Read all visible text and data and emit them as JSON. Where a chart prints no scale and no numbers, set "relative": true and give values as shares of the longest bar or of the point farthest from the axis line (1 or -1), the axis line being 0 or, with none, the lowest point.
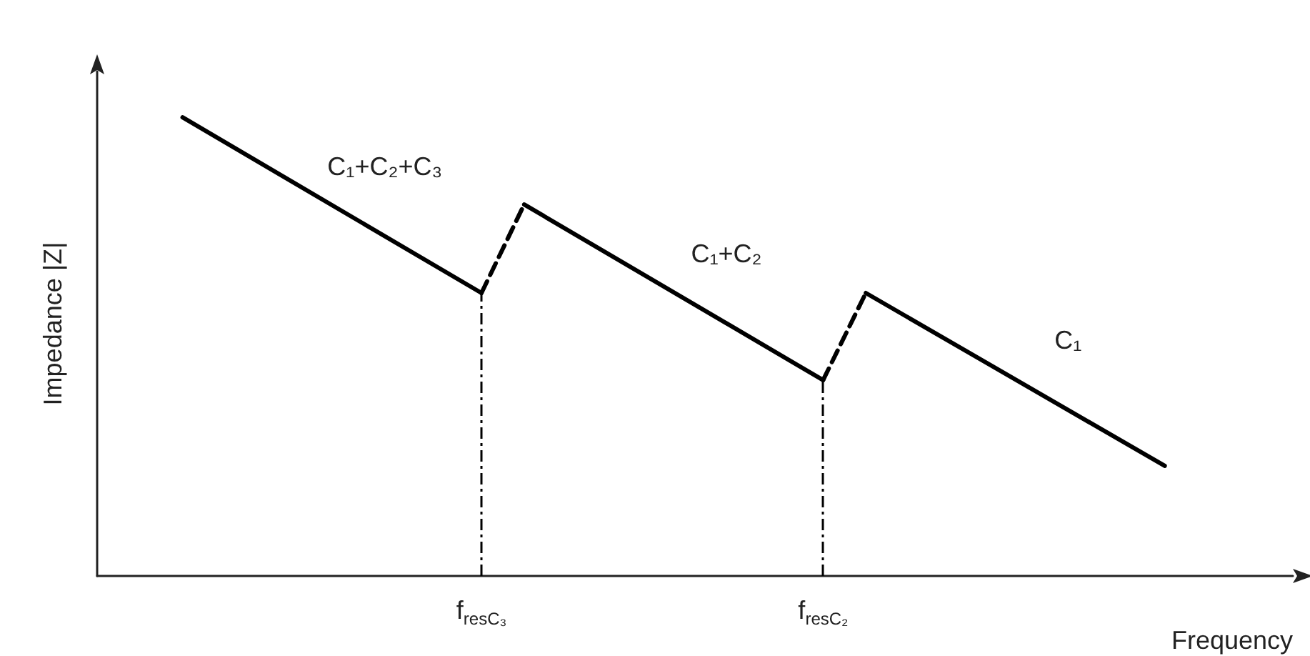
{
  "chart_data": {
    "type": "line",
    "relative": true,
    "xlabel": "Frequency",
    "ylabel": "Impedance |Z|",
    "tick_labels": "x",
    "grid": false,
    "legend": false,
    "marker": "none",
    "categories": [
      null,
      null,
      null,
      null,
      null,
      null,
      null,
      null,
      null,
      "f$_{resC₃}$",
      null,
      null,
      null,
      null,
      null,
      null,
      null,
      "f$_{resC₂}$",
      null,
      null,
      null,
      null,
      null,
      null,
      null,
      null,
      null,
      null,
      null
    ],
    "series": [
      {
        "name": "C₁+C₂+C₃",
        "color": "#000000",
        "line_style": "solid",
        "values": [
          null,
          null,
          1,
          null,
          null,
          null,
          null,
          null,
          null,
          0.617,
          null,
          null,
          null,
          null,
          null,
          null,
          null,
          null,
          null,
          null,
          null,
          null,
          null,
          null,
          null,
          null,
          null,
          null,
          null
        ]
      },
      {
        "color": "#000000",
        "line_style": "dashed",
        "values": [
          null,
          null,
          null,
          null,
          null,
          null,
          null,
          null,
          null,
          0.617,
          0.81,
          null,
          null,
          null,
          null,
          null,
          null,
          null,
          null,
          null,
          null,
          null,
          null,
          null,
          null,
          null,
          null,
          null,
          null
        ]
      },
      {
        "name": "C₁+C₂",
        "color": "#000000",
        "line_style": "solid",
        "values": [
          null,
          null,
          null,
          null,
          null,
          null,
          null,
          null,
          null,
          null,
          0.81,
          null,
          null,
          null,
          null,
          null,
          null,
          0.427,
          null,
          null,
          null,
          null,
          null,
          null,
          null,
          null,
          null,
          null,
          null
        ]
      },
      {
        "color": "#000000",
        "line_style": "dashed",
        "values": [
          null,
          null,
          null,
          null,
          null,
          null,
          null,
          null,
          null,
          null,
          null,
          null,
          null,
          null,
          null,
          null,
          null,
          0.427,
          0.617,
          null,
          null,
          null,
          null,
          null,
          null,
          null,
          null,
          null,
          null
        ]
      },
      {
        "name": "C₁",
        "color": "#000000",
        "line_style": "solid",
        "values": [
          null,
          null,
          null,
          null,
          null,
          null,
          null,
          null,
          null,
          null,
          null,
          null,
          null,
          null,
          null,
          null,
          null,
          null,
          0.617,
          null,
          null,
          null,
          null,
          null,
          null,
          0.24,
          null,
          null,
          null
        ]
      }
    ],
    "ref_lines": [
      {
        "axis": "x",
        "value": "f$_{resC₃}$",
        "line_style": "dashdot",
        "color": "#000000"
      },
      {
        "axis": "x",
        "value": "f$_{resC₂}$",
        "line_style": "dashdot",
        "color": "#000000"
      }
    ]
  }
}
